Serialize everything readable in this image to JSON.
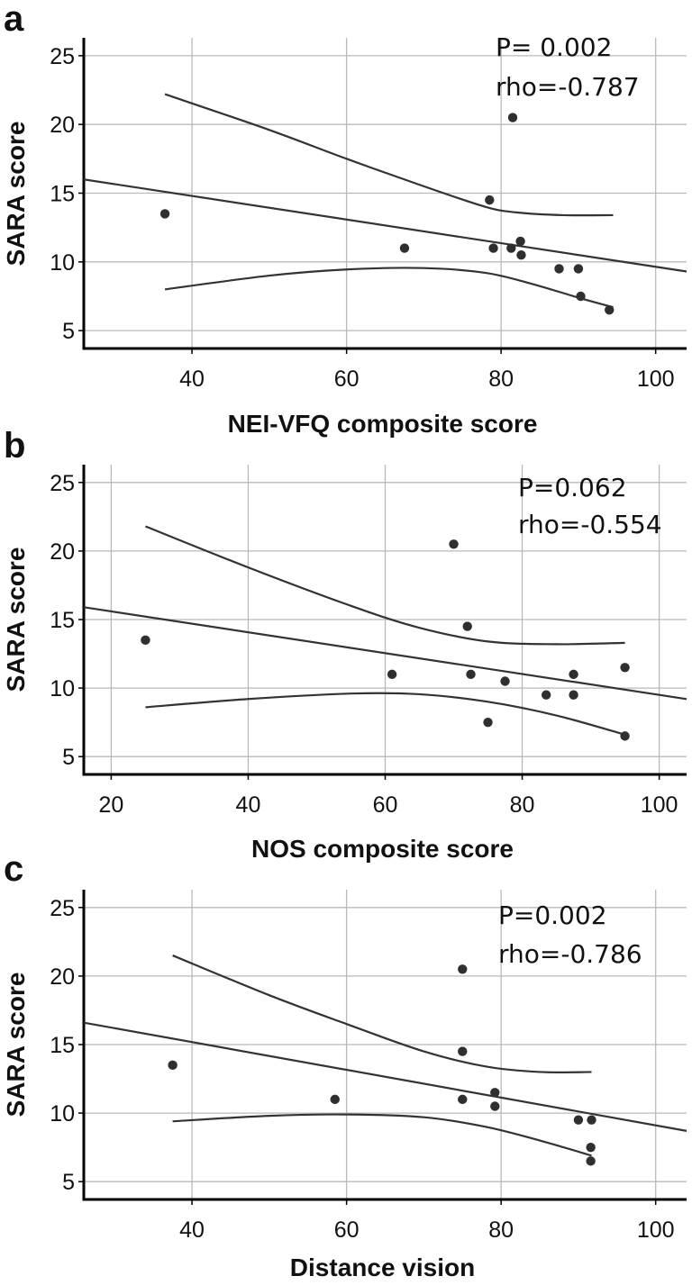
{
  "chart_data": [
    {
      "type": "scatter",
      "panel": "a",
      "ylabel": "SARA score",
      "xlabel": "NEI-VFQ composite score",
      "xlim": [
        26,
        104
      ],
      "ylim": [
        3.7,
        26.3
      ],
      "xticks": [
        40,
        60,
        80,
        100
      ],
      "yticks": [
        5,
        10,
        15,
        20,
        25
      ],
      "annotations": [
        "P= 0.002",
        "rho=-0.787"
      ],
      "points": [
        [
          36.5,
          13.5
        ],
        [
          67.5,
          11
        ],
        [
          78.5,
          14.5
        ],
        [
          79,
          11
        ],
        [
          81.5,
          20.5
        ],
        [
          81.3,
          11
        ],
        [
          82.5,
          11.5
        ],
        [
          82.6,
          10.5
        ],
        [
          87.5,
          9.5
        ],
        [
          90,
          9.5
        ],
        [
          90.3,
          7.5
        ],
        [
          94,
          6.5
        ]
      ],
      "fit_line": [
        [
          26,
          16
        ],
        [
          104,
          9.3
        ]
      ],
      "ci_upper": [
        [
          36.5,
          22.2
        ],
        [
          50,
          19.6
        ],
        [
          60,
          17.5
        ],
        [
          70,
          15.5
        ],
        [
          78,
          14
        ],
        [
          82,
          13.6
        ],
        [
          88,
          13.4
        ],
        [
          94.5,
          13.4
        ]
      ],
      "ci_lower": [
        [
          36.5,
          8
        ],
        [
          50,
          9
        ],
        [
          60,
          9.45
        ],
        [
          70,
          9.55
        ],
        [
          78,
          9.2
        ],
        [
          84,
          8.4
        ],
        [
          90,
          7.4
        ],
        [
          94.5,
          6.7
        ]
      ]
    },
    {
      "type": "scatter",
      "panel": "b",
      "ylabel": "SARA score",
      "xlabel": "NOS composite score",
      "xlim": [
        16,
        104
      ],
      "ylim": [
        3.7,
        26.3
      ],
      "xticks": [
        20,
        40,
        60,
        80,
        100
      ],
      "yticks": [
        5,
        10,
        15,
        20,
        25
      ],
      "annotations": [
        "P=0.062",
        "rho=-0.554"
      ],
      "points": [
        [
          25,
          13.5
        ],
        [
          61,
          11
        ],
        [
          70,
          20.5
        ],
        [
          72,
          14.5
        ],
        [
          72.5,
          11
        ],
        [
          77.5,
          10.5
        ],
        [
          75,
          7.5
        ],
        [
          83.5,
          9.5
        ],
        [
          87.5,
          11
        ],
        [
          87.5,
          9.5
        ],
        [
          95,
          11.5
        ],
        [
          95,
          6.5
        ]
      ],
      "fit_line": [
        [
          16,
          15.9
        ],
        [
          104,
          9.2
        ]
      ],
      "ci_upper": [
        [
          25,
          21.8
        ],
        [
          40,
          18.8
        ],
        [
          55,
          16
        ],
        [
          65,
          14.4
        ],
        [
          75,
          13.4
        ],
        [
          85,
          13.2
        ],
        [
          95,
          13.3
        ]
      ],
      "ci_lower": [
        [
          25,
          8.6
        ],
        [
          40,
          9.2
        ],
        [
          55,
          9.6
        ],
        [
          65,
          9.55
        ],
        [
          75,
          9
        ],
        [
          85,
          8
        ],
        [
          95,
          6.6
        ]
      ]
    },
    {
      "type": "scatter",
      "panel": "c",
      "ylabel": "SARA score",
      "xlabel": "Distance vision",
      "xlim": [
        26,
        104
      ],
      "ylim": [
        3.7,
        26.3
      ],
      "xticks": [
        40,
        60,
        80,
        100
      ],
      "yticks": [
        5,
        10,
        15,
        20,
        25
      ],
      "annotations": [
        "P=0.002",
        "rho=-0.786"
      ],
      "points": [
        [
          37.5,
          13.5
        ],
        [
          58.5,
          11
        ],
        [
          75,
          20.5
        ],
        [
          75,
          14.5
        ],
        [
          75,
          11
        ],
        [
          79.2,
          11.5
        ],
        [
          79.2,
          10.5
        ],
        [
          90,
          9.5
        ],
        [
          91.7,
          9.5
        ],
        [
          91.6,
          7.5
        ],
        [
          91.6,
          6.5
        ]
      ],
      "fit_line": [
        [
          26,
          16.6
        ],
        [
          104,
          8.7
        ]
      ],
      "ci_upper": [
        [
          37.5,
          21.5
        ],
        [
          50,
          18.6
        ],
        [
          60,
          16.5
        ],
        [
          70,
          14.5
        ],
        [
          78,
          13.4
        ],
        [
          85,
          13
        ],
        [
          91.7,
          13
        ]
      ],
      "ci_lower": [
        [
          37.5,
          9.4
        ],
        [
          50,
          9.8
        ],
        [
          60,
          9.9
        ],
        [
          70,
          9.7
        ],
        [
          78,
          9
        ],
        [
          85,
          8
        ],
        [
          91.7,
          6.9
        ]
      ]
    }
  ]
}
